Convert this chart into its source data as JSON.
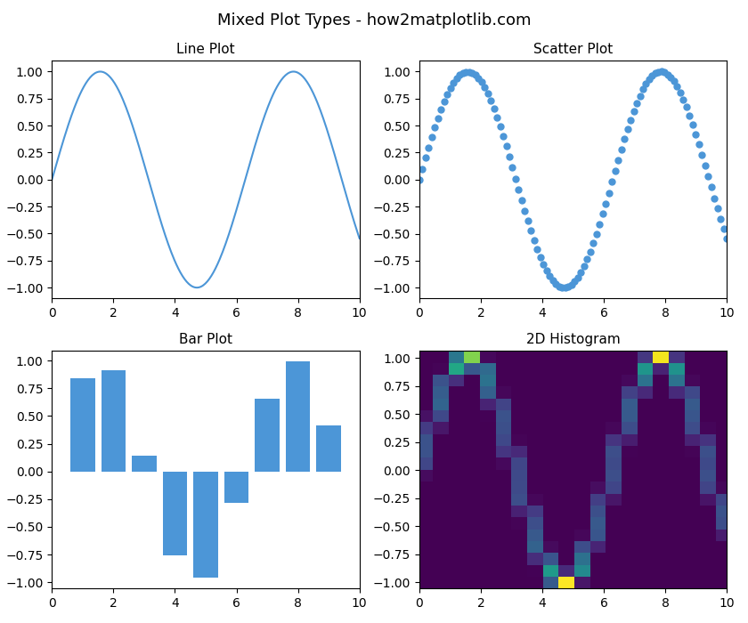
{
  "title": "Mixed Plot Types - how2matplotlib.com",
  "line_title": "Line Plot",
  "scatter_title": "Scatter Plot",
  "bar_title": "Bar Plot",
  "hist2d_title": "2D Histogram",
  "line_color": "#4c96d7",
  "scatter_color": "#4c96d7",
  "bar_color": "#4c96d7",
  "hist2d_bins": 20,
  "hist2d_cmap": "viridis",
  "figsize": [
    8.4,
    7.0
  ],
  "dpi": 100,
  "suptitle_fontsize": 13,
  "subtitle_fontsize": 11,
  "scatter_size": 25,
  "bar_x": [
    1,
    2,
    3,
    4,
    5,
    6,
    7,
    8,
    9
  ],
  "bar_width": 0.8
}
